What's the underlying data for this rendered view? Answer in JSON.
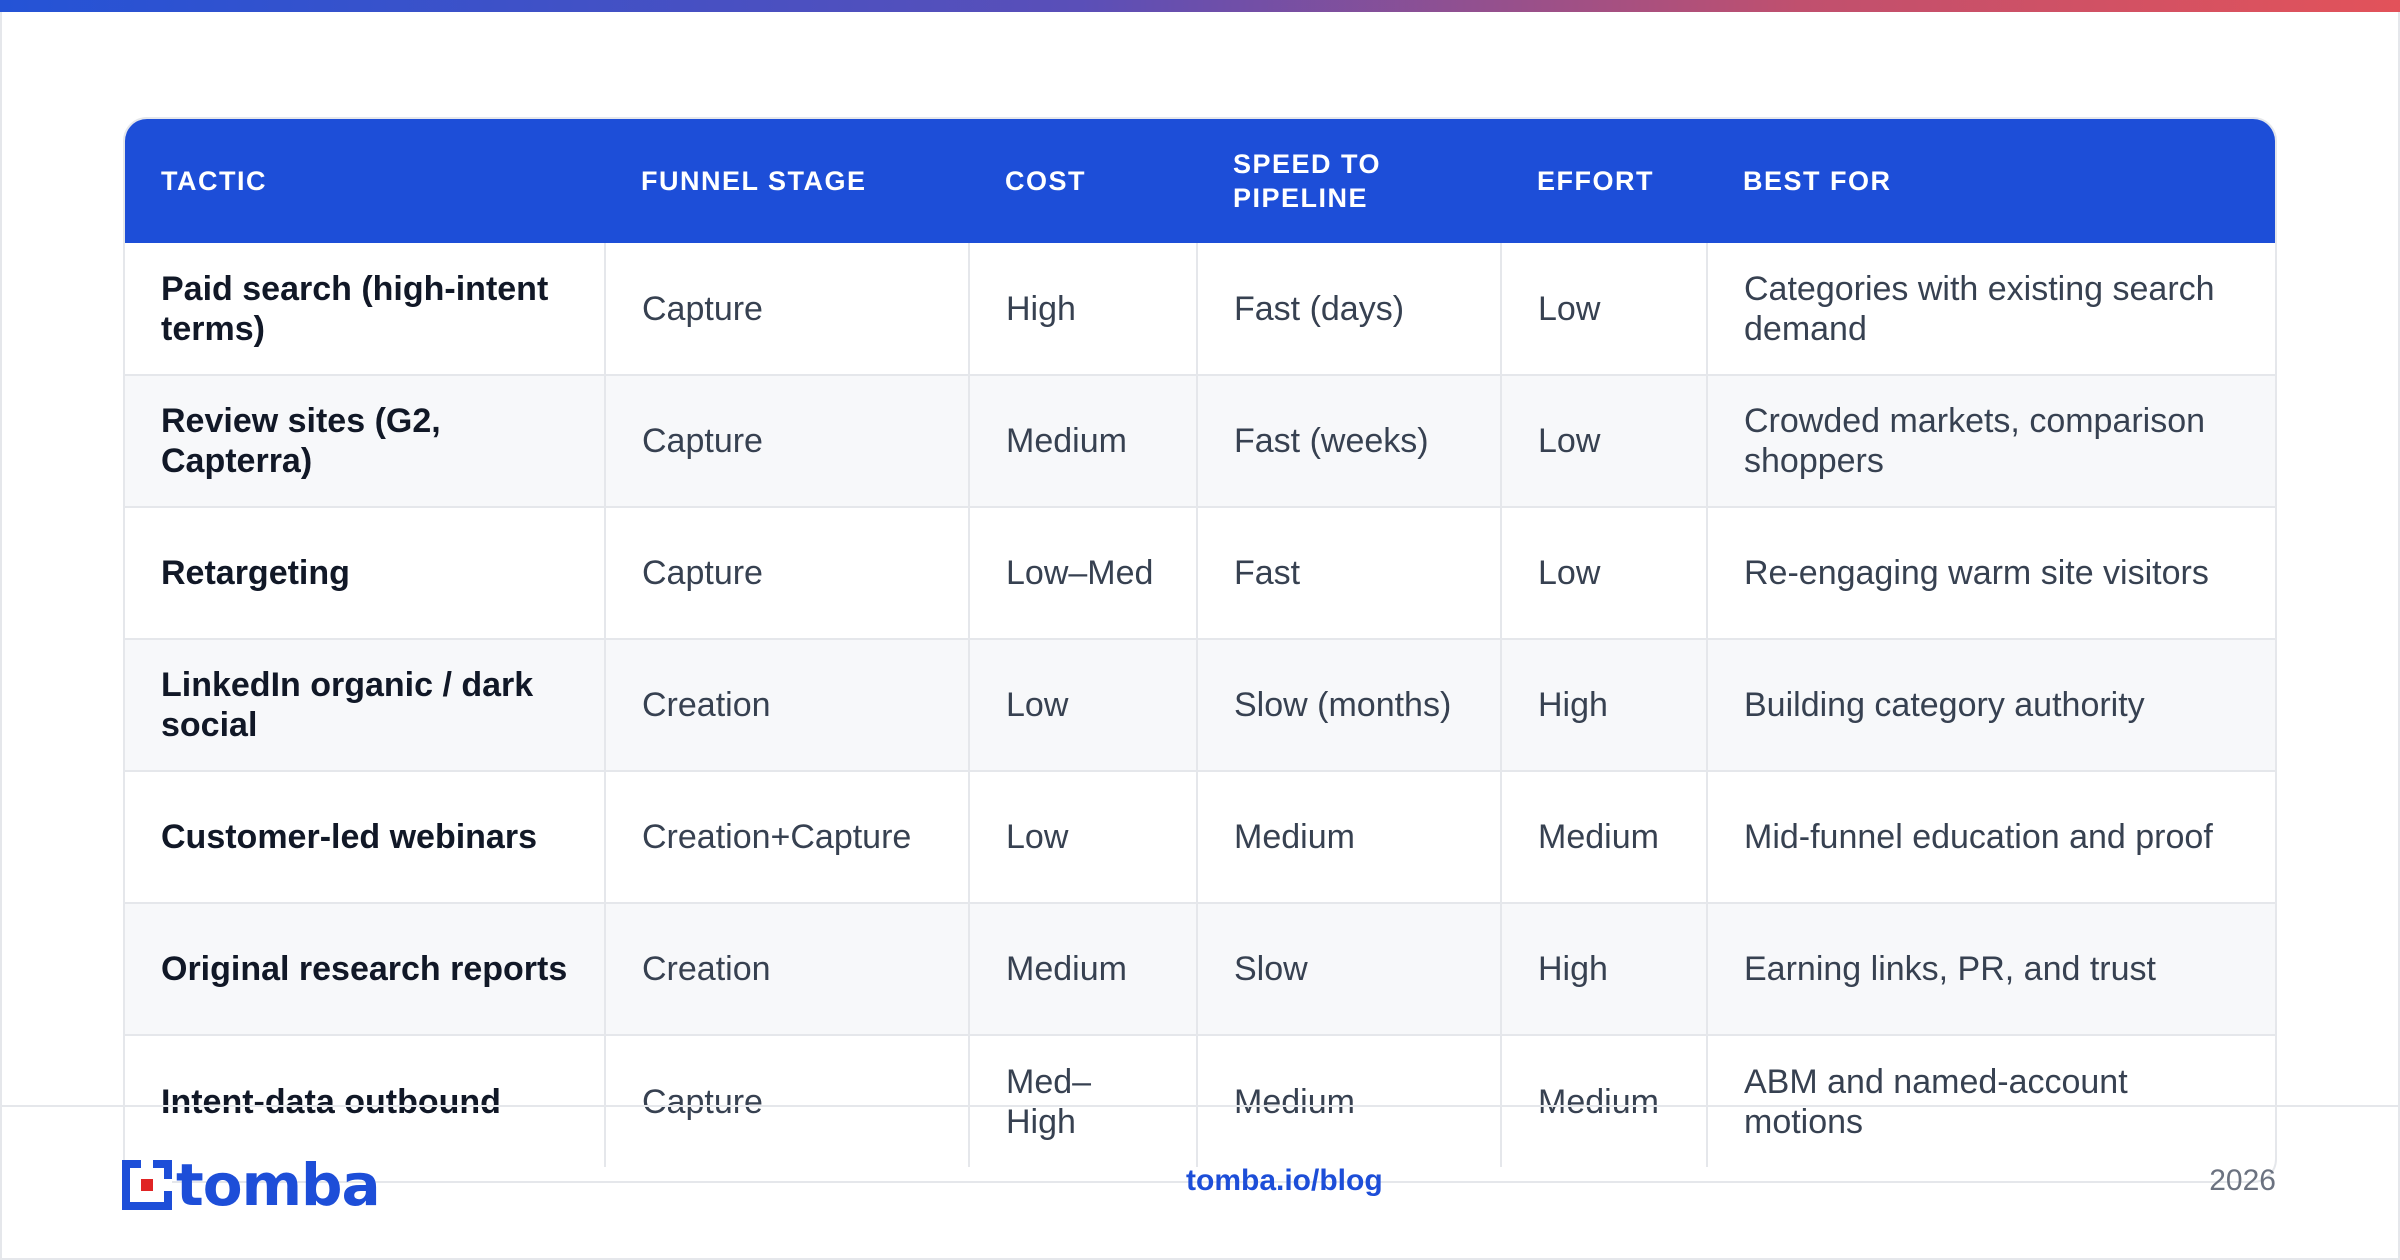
{
  "table": {
    "headers": [
      "TACTIC",
      "FUNNEL STAGE",
      "COST",
      "SPEED TO PIPELINE",
      "EFFORT",
      "BEST FOR"
    ],
    "rows": [
      [
        "Paid search (high-intent terms)",
        "Capture",
        "High",
        "Fast (days)",
        "Low",
        "Categories with existing search demand"
      ],
      [
        "Review sites (G2, Capterra)",
        "Capture",
        "Medium",
        "Fast (weeks)",
        "Low",
        "Crowded markets, comparison shoppers"
      ],
      [
        "Retargeting",
        "Capture",
        "Low–Med",
        "Fast",
        "Low",
        "Re-engaging warm site visitors"
      ],
      [
        "LinkedIn organic / dark social",
        "Creation",
        "Low",
        "Slow (months)",
        "High",
        "Building category authority"
      ],
      [
        "Customer-led webinars",
        "Creation+Capture",
        "Low",
        "Medium",
        "Medium",
        "Mid-funnel education and proof"
      ],
      [
        "Original research reports",
        "Creation",
        "Medium",
        "Slow",
        "High",
        "Earning links, PR, and trust"
      ],
      [
        "Intent-data outbound",
        "Capture",
        "Med–High",
        "Medium",
        "Medium",
        "ABM and named-account motions"
      ]
    ]
  },
  "footer": {
    "logo_text": "tomba",
    "url": "tomba.io/blog",
    "year": "2026"
  },
  "colors": {
    "header_bg": "#1d4ed8",
    "brand_red": "#e02424",
    "gradient_start": "#2453d6",
    "gradient_end": "#e2525a"
  }
}
